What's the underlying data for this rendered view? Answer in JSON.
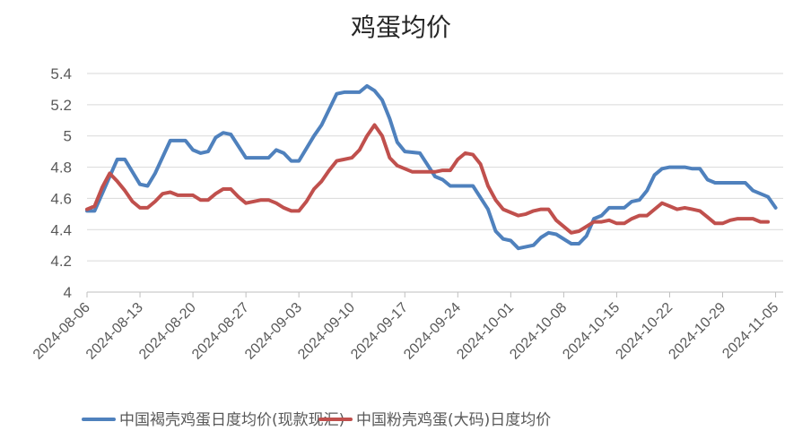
{
  "chart_data": {
    "type": "line",
    "title": "鸡蛋均价",
    "xlabel": "",
    "ylabel": "",
    "ylim": [
      4,
      5.4
    ],
    "yticks": [
      "4",
      "4.2",
      "4.4",
      "4.6",
      "4.8",
      "5",
      "5.2",
      "5.4"
    ],
    "xlim": [
      "2024-08-06",
      "2024-11-06"
    ],
    "xticks": [
      "2024-08-06",
      "2024-08-13",
      "2024-08-20",
      "2024-08-27",
      "2024-09-03",
      "2024-09-10",
      "2024-09-17",
      "2024-09-24",
      "2024-10-01",
      "2024-10-08",
      "2024-10-15",
      "2024-10-22",
      "2024-10-29",
      "2024-11-05"
    ],
    "grid": true,
    "legend_position": "bottom",
    "series": [
      {
        "name": "中国褐壳鸡蛋日度均价(现款现汇)",
        "color": "#4F81BD",
        "points": [
          [
            "2024-08-06",
            4.52
          ],
          [
            "2024-08-07",
            4.52
          ],
          [
            "2024-08-10",
            4.85
          ],
          [
            "2024-08-11",
            4.85
          ],
          [
            "2024-08-13",
            4.69
          ],
          [
            "2024-08-14",
            4.68
          ],
          [
            "2024-08-15",
            4.76
          ],
          [
            "2024-08-17",
            4.97
          ],
          [
            "2024-08-19",
            4.97
          ],
          [
            "2024-08-20",
            4.91
          ],
          [
            "2024-08-21",
            4.89
          ],
          [
            "2024-08-22",
            4.9
          ],
          [
            "2024-08-23",
            4.99
          ],
          [
            "2024-08-24",
            5.02
          ],
          [
            "2024-08-25",
            5.01
          ],
          [
            "2024-08-27",
            4.86
          ],
          [
            "2024-08-30",
            4.86
          ],
          [
            "2024-08-31",
            4.91
          ],
          [
            "2024-09-01",
            4.89
          ],
          [
            "2024-09-02",
            4.84
          ],
          [
            "2024-09-03",
            4.84
          ],
          [
            "2024-09-05",
            5.0
          ],
          [
            "2024-09-06",
            5.07
          ],
          [
            "2024-09-08",
            5.27
          ],
          [
            "2024-09-09",
            5.28
          ],
          [
            "2024-09-11",
            5.28
          ],
          [
            "2024-09-12",
            5.32
          ],
          [
            "2024-09-13",
            5.29
          ],
          [
            "2024-09-14",
            5.23
          ],
          [
            "2024-09-15",
            5.11
          ],
          [
            "2024-09-16",
            4.96
          ],
          [
            "2024-09-17",
            4.9
          ],
          [
            "2024-09-19",
            4.89
          ],
          [
            "2024-09-21",
            4.74
          ],
          [
            "2024-09-22",
            4.72
          ],
          [
            "2024-09-23",
            4.68
          ],
          [
            "2024-09-26",
            4.68
          ],
          [
            "2024-09-28",
            4.53
          ],
          [
            "2024-09-29",
            4.39
          ],
          [
            "2024-09-30",
            4.34
          ],
          [
            "2024-10-01",
            4.33
          ],
          [
            "2024-10-02",
            4.28
          ],
          [
            "2024-10-04",
            4.3
          ],
          [
            "2024-10-05",
            4.35
          ],
          [
            "2024-10-06",
            4.38
          ],
          [
            "2024-10-07",
            4.37
          ],
          [
            "2024-10-09",
            4.31
          ],
          [
            "2024-10-10",
            4.31
          ],
          [
            "2024-10-11",
            4.36
          ],
          [
            "2024-10-12",
            4.47
          ],
          [
            "2024-10-13",
            4.49
          ],
          [
            "2024-10-14",
            4.54
          ],
          [
            "2024-10-16",
            4.54
          ],
          [
            "2024-10-17",
            4.58
          ],
          [
            "2024-10-18",
            4.59
          ],
          [
            "2024-10-19",
            4.65
          ],
          [
            "2024-10-20",
            4.75
          ],
          [
            "2024-10-21",
            4.79
          ],
          [
            "2024-10-22",
            4.8
          ],
          [
            "2024-10-24",
            4.8
          ],
          [
            "2024-10-25",
            4.79
          ],
          [
            "2024-10-26",
            4.79
          ],
          [
            "2024-10-27",
            4.72
          ],
          [
            "2024-10-28",
            4.7
          ],
          [
            "2024-11-01",
            4.7
          ],
          [
            "2024-11-02",
            4.65
          ],
          [
            "2024-11-04",
            4.61
          ],
          [
            "2024-11-05",
            4.54
          ]
        ]
      },
      {
        "name": "中国粉壳鸡蛋(大码)日度均价",
        "color": "#C0504D",
        "points": [
          [
            "2024-08-06",
            4.53
          ],
          [
            "2024-08-07",
            4.55
          ],
          [
            "2024-08-08",
            4.67
          ],
          [
            "2024-08-09",
            4.76
          ],
          [
            "2024-08-10",
            4.71
          ],
          [
            "2024-08-11",
            4.65
          ],
          [
            "2024-08-12",
            4.58
          ],
          [
            "2024-08-13",
            4.54
          ],
          [
            "2024-08-14",
            4.54
          ],
          [
            "2024-08-15",
            4.58
          ],
          [
            "2024-08-16",
            4.63
          ],
          [
            "2024-08-17",
            4.64
          ],
          [
            "2024-08-18",
            4.62
          ],
          [
            "2024-08-20",
            4.62
          ],
          [
            "2024-08-21",
            4.59
          ],
          [
            "2024-08-22",
            4.59
          ],
          [
            "2024-08-23",
            4.63
          ],
          [
            "2024-08-24",
            4.66
          ],
          [
            "2024-08-25",
            4.66
          ],
          [
            "2024-08-26",
            4.61
          ],
          [
            "2024-08-27",
            4.57
          ],
          [
            "2024-08-28",
            4.58
          ],
          [
            "2024-08-29",
            4.59
          ],
          [
            "2024-08-30",
            4.59
          ],
          [
            "2024-08-31",
            4.57
          ],
          [
            "2024-09-01",
            4.54
          ],
          [
            "2024-09-02",
            4.52
          ],
          [
            "2024-09-03",
            4.52
          ],
          [
            "2024-09-04",
            4.58
          ],
          [
            "2024-09-05",
            4.66
          ],
          [
            "2024-09-06",
            4.71
          ],
          [
            "2024-09-07",
            4.78
          ],
          [
            "2024-09-08",
            4.84
          ],
          [
            "2024-09-10",
            4.86
          ],
          [
            "2024-09-11",
            4.91
          ],
          [
            "2024-09-12",
            5.0
          ],
          [
            "2024-09-13",
            5.07
          ],
          [
            "2024-09-14",
            5.0
          ],
          [
            "2024-09-15",
            4.86
          ],
          [
            "2024-09-16",
            4.81
          ],
          [
            "2024-09-18",
            4.77
          ],
          [
            "2024-09-21",
            4.77
          ],
          [
            "2024-09-22",
            4.78
          ],
          [
            "2024-09-23",
            4.78
          ],
          [
            "2024-09-24",
            4.85
          ],
          [
            "2024-09-25",
            4.89
          ],
          [
            "2024-09-26",
            4.88
          ],
          [
            "2024-09-27",
            4.82
          ],
          [
            "2024-09-28",
            4.68
          ],
          [
            "2024-09-29",
            4.59
          ],
          [
            "2024-09-30",
            4.53
          ],
          [
            "2024-10-01",
            4.51
          ],
          [
            "2024-10-02",
            4.49
          ],
          [
            "2024-10-03",
            4.5
          ],
          [
            "2024-10-04",
            4.52
          ],
          [
            "2024-10-05",
            4.53
          ],
          [
            "2024-10-06",
            4.53
          ],
          [
            "2024-10-07",
            4.46
          ],
          [
            "2024-10-08",
            4.42
          ],
          [
            "2024-10-09",
            4.38
          ],
          [
            "2024-10-10",
            4.39
          ],
          [
            "2024-10-11",
            4.42
          ],
          [
            "2024-10-12",
            4.45
          ],
          [
            "2024-10-13",
            4.45
          ],
          [
            "2024-10-14",
            4.46
          ],
          [
            "2024-10-15",
            4.44
          ],
          [
            "2024-10-16",
            4.44
          ],
          [
            "2024-10-17",
            4.47
          ],
          [
            "2024-10-18",
            4.49
          ],
          [
            "2024-10-19",
            4.49
          ],
          [
            "2024-10-20",
            4.53
          ],
          [
            "2024-10-21",
            4.57
          ],
          [
            "2024-10-22",
            4.55
          ],
          [
            "2024-10-23",
            4.53
          ],
          [
            "2024-10-24",
            4.54
          ],
          [
            "2024-10-25",
            4.53
          ],
          [
            "2024-10-26",
            4.52
          ],
          [
            "2024-10-27",
            4.48
          ],
          [
            "2024-10-28",
            4.44
          ],
          [
            "2024-10-29",
            4.44
          ],
          [
            "2024-10-30",
            4.46
          ],
          [
            "2024-10-31",
            4.47
          ],
          [
            "2024-11-02",
            4.47
          ],
          [
            "2024-11-03",
            4.45
          ],
          [
            "2024-11-04",
            4.45
          ]
        ]
      }
    ]
  }
}
